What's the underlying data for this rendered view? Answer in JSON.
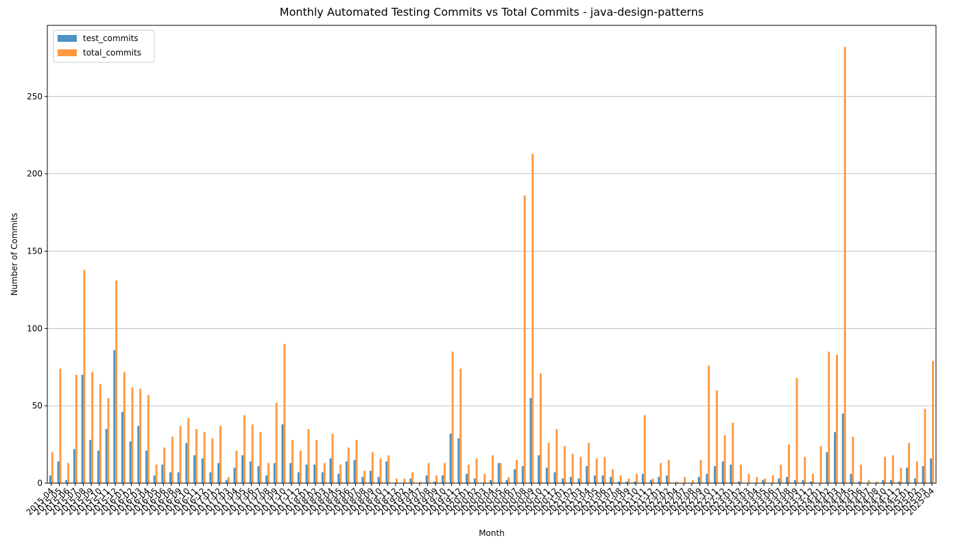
{
  "chart_data": {
    "type": "bar",
    "title": "Monthly Automated Testing Commits vs Total Commits - java-design-patterns",
    "x_label": "Month",
    "y_label": "Number of Commits",
    "categories": [
      "2015-04",
      "2015-05",
      "2015-06",
      "2015-07",
      "2015-08",
      "2015-09",
      "2015-10",
      "2015-11",
      "2015-12",
      "2016-01",
      "2016-02",
      "2016-03",
      "2016-04",
      "2016-05",
      "2016-06",
      "2016-08",
      "2016-09",
      "2016-10",
      "2016-11",
      "2016-12",
      "2017-01",
      "2017-02",
      "2017-03",
      "2017-04",
      "2017-05",
      "2017-06",
      "2017-07",
      "2017-08",
      "2017-09",
      "2017-10",
      "2017-11",
      "2017-12",
      "2018-01",
      "2018-02",
      "2018-03",
      "2018-04",
      "2018-05",
      "2018-06",
      "2018-07",
      "2018-08",
      "2018-09",
      "2018-10",
      "2018-11",
      "2018-12",
      "2019-02",
      "2019-04",
      "2019-07",
      "2019-08",
      "2019-09",
      "2019-10",
      "2019-11",
      "2019-12",
      "2020-01",
      "2020-02",
      "2020-03",
      "2020-04",
      "2020-05",
      "2020-06",
      "2020-07",
      "2020-08",
      "2020-09",
      "2020-10",
      "2020-11",
      "2020-12",
      "2021-01",
      "2021-02",
      "2021-03",
      "2021-04",
      "2021-05",
      "2021-06",
      "2021-07",
      "2021-08",
      "2021-09",
      "2021-10",
      "2021-11",
      "2021-12",
      "2022-01",
      "2022-02",
      "2022-04",
      "2022-07",
      "2022-08",
      "2022-09",
      "2022-10",
      "2022-11",
      "2022-12",
      "2023-01",
      "2023-02",
      "2023-03",
      "2023-04",
      "2023-05",
      "2023-06",
      "2023-07",
      "2023-08",
      "2023-09",
      "2023-11",
      "2023-12",
      "2024-01",
      "2024-02",
      "2024-03",
      "2024-04",
      "2024-05",
      "2024-06",
      "2024-07",
      "2024-08",
      "2024-10",
      "2024-11",
      "2024-12",
      "2025-01",
      "2025-02",
      "2025-03",
      "2025-04"
    ],
    "series": [
      {
        "name": "test_commits",
        "color": "#4c92c3",
        "values": [
          5,
          14,
          2,
          22,
          70,
          28,
          21,
          35,
          86,
          46,
          27,
          37,
          21,
          5,
          12,
          7,
          7,
          26,
          18,
          16,
          7,
          13,
          2,
          10,
          18,
          14,
          11,
          5,
          13,
          38,
          13,
          7,
          12,
          12,
          7,
          16,
          6,
          14,
          15,
          4,
          8,
          4,
          14,
          0,
          0,
          3,
          0,
          5,
          1,
          5,
          32,
          29,
          6,
          3,
          0,
          2,
          13,
          2,
          9,
          11,
          55,
          18,
          10,
          7,
          3,
          4,
          3,
          11,
          5,
          5,
          4,
          1,
          1,
          1,
          6,
          2,
          4,
          5,
          0,
          0,
          0,
          4,
          6,
          11,
          14,
          12,
          1,
          0,
          0,
          2,
          0,
          3,
          4,
          2,
          2,
          1,
          0,
          20,
          33,
          45,
          6,
          1,
          0,
          0,
          2,
          2,
          1,
          10,
          3,
          11,
          16
        ]
      },
      {
        "name": "total_commits",
        "color": "#ff993f",
        "values": [
          20,
          74,
          13,
          70,
          138,
          72,
          64,
          55,
          131,
          72,
          62,
          61,
          57,
          12,
          23,
          30,
          37,
          42,
          35,
          33,
          29,
          37,
          4,
          21,
          44,
          38,
          33,
          13,
          52,
          90,
          28,
          21,
          35,
          28,
          13,
          32,
          12,
          23,
          28,
          8,
          20,
          16,
          18,
          3,
          3,
          7,
          1,
          13,
          5,
          13,
          85,
          74,
          12,
          16,
          6,
          18,
          13,
          4,
          15,
          186,
          213,
          71,
          26,
          35,
          24,
          19,
          17,
          26,
          16,
          17,
          9,
          5,
          3,
          6,
          44,
          3,
          13,
          15,
          1,
          4,
          2,
          15,
          76,
          60,
          31,
          39,
          12,
          6,
          4,
          3,
          5,
          12,
          25,
          68,
          17,
          6,
          24,
          85,
          83,
          282,
          30,
          12,
          2,
          1,
          17,
          18,
          10,
          26,
          14,
          48,
          79
        ]
      }
    ],
    "ylim": [
      0,
      296
    ],
    "yticks": [
      0,
      50,
      100,
      150,
      200,
      250
    ],
    "grid": true,
    "legend": "upper left"
  }
}
